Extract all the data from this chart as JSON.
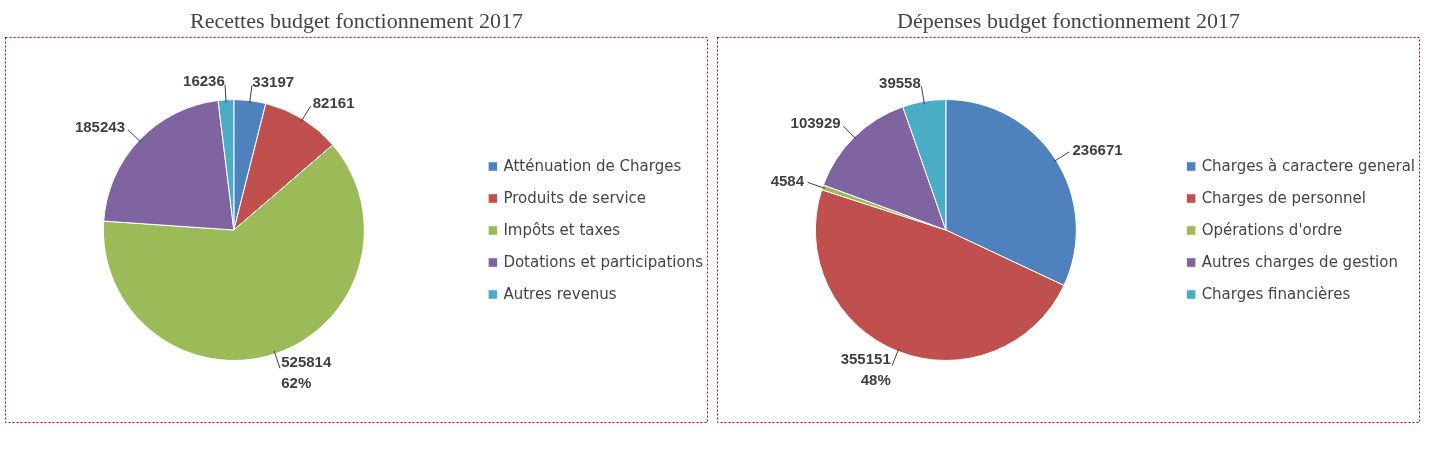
{
  "chart_data": [
    {
      "type": "pie",
      "title": "Recettes budget fonctionnement 2017",
      "categories": [
        "Atténuation de Charges",
        "Produits de service",
        "Impôts et taxes",
        "Dotations et participations",
        "Autres revenus"
      ],
      "values": [
        33197,
        82161,
        525814,
        185243,
        16236
      ],
      "colors": [
        "#4f81bd",
        "#c0504d",
        "#9bbb59",
        "#8064a2",
        "#4bacc6"
      ],
      "value_labels": [
        "33197",
        "82161",
        "525814\n62%",
        "185243",
        "16236"
      ],
      "legend": "right"
    },
    {
      "type": "pie",
      "title": "Dépenses budget fonctionnement 2017",
      "categories": [
        "Charges à caractere general",
        "Charges de personnel",
        "Opérations d'ordre",
        "Autres charges de gestion",
        "Charges financières"
      ],
      "values": [
        236671,
        355151,
        4584,
        103929,
        39558
      ],
      "colors": [
        "#4f81bd",
        "#c0504d",
        "#9bbb59",
        "#8064a2",
        "#4bacc6"
      ],
      "value_labels": [
        "236671",
        "355151\n48%",
        "4584",
        "103929",
        "39558"
      ],
      "legend": "right"
    }
  ]
}
